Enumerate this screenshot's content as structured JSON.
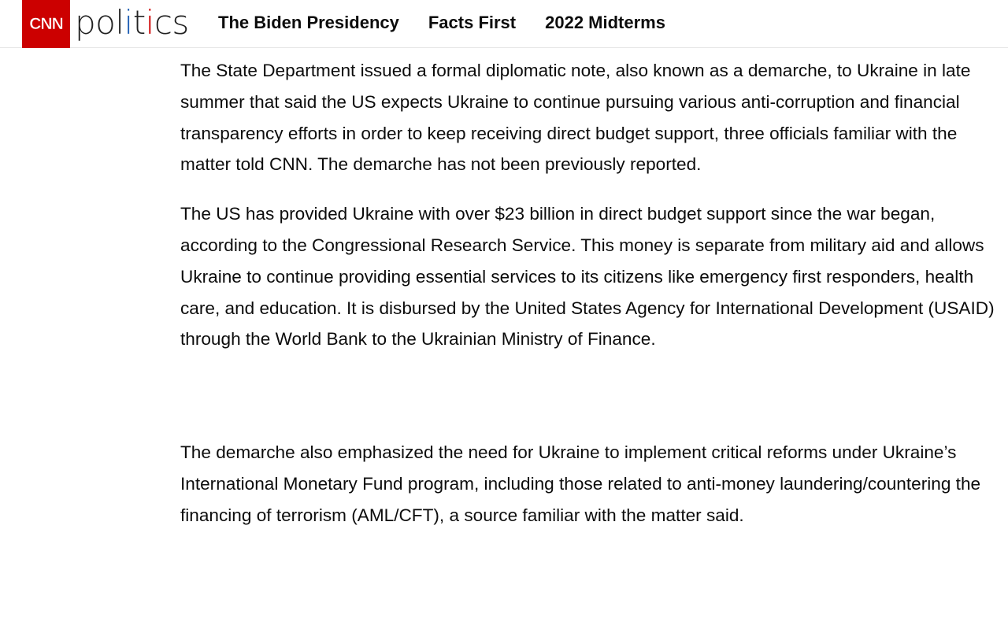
{
  "header": {
    "logo_text": "CNN",
    "brand": {
      "p1": "pol",
      "i1": "i",
      "t": "t",
      "i2": "i",
      "rest": "cs"
    },
    "colors": {
      "logo_bg": "#cc0000",
      "dot_blue": "#1f5fb4",
      "dot_red": "#cc0000"
    },
    "nav": [
      "The Biden Presidency",
      "Facts First",
      "2022 Midterms"
    ]
  },
  "article": {
    "paragraphs": [
      "The State Department issued a formal diplomatic note, also known as a demarche, to Ukraine in late summer that said the US expects Ukraine to continue pursuing various anti-corruption and financial transparency efforts in order to keep receiving direct budget support, three officials familiar with the matter told CNN. The demarche has not been previously reported.",
      "The US has provided Ukraine with over $23 billion in direct budget support since the war began, according to the Congressional Research Service. This money is separate from military aid and allows Ukraine to continue providing essential services to its citizens like emergency first responders, health care, and education. It is disbursed by the United States Agency for International Development (USAID) through the World Bank to the Ukrainian Ministry of Finance.",
      "The demarche also emphasized the need for Ukraine to implement critical reforms under Ukraine’s International Monetary Fund program, including those related to anti-money laundering/countering the financing of terrorism (AML/CFT), a source familiar with the matter said."
    ]
  }
}
